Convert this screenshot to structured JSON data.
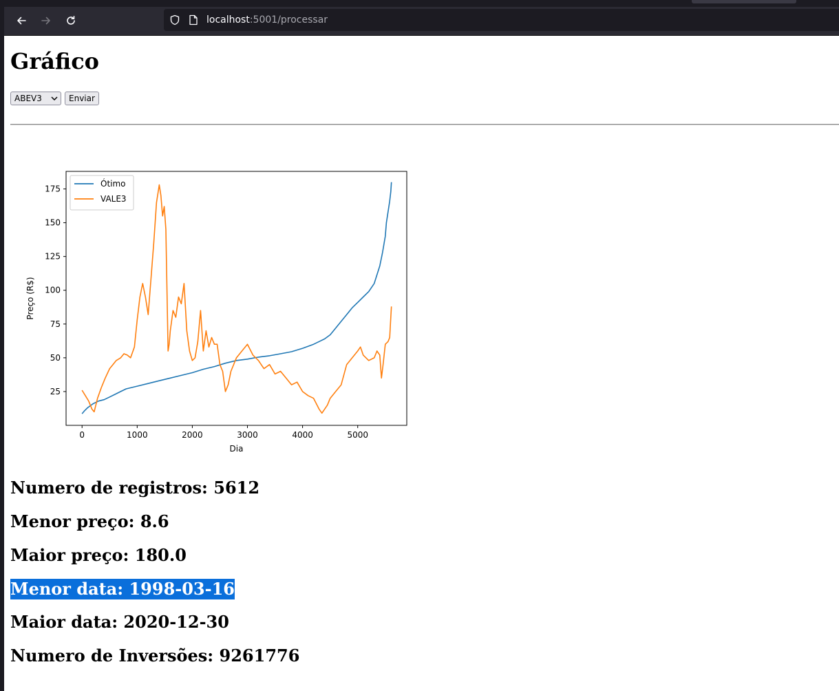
{
  "browser": {
    "url_host": "localhost",
    "url_path": ":5001/processar"
  },
  "page": {
    "title": "Gráfico",
    "select_value": "ABEV3",
    "submit_label": "Enviar"
  },
  "stats": {
    "registros": "Numero de registros: 5612",
    "menor_preco": "Menor preço: 8.6",
    "maior_preco": "Maior preço: 180.0",
    "menor_data": "Menor data: 1998-03-16",
    "maior_data": "Maior data: 2020-12-30",
    "inversoes": "Numero de Inversões: 9261776"
  },
  "colors": {
    "otimo": "#1f77b4",
    "vale3": "#ff7f0e",
    "selection": "#0a6fdb"
  },
  "chart_data": {
    "type": "line",
    "title": "",
    "xlabel": "Dia",
    "ylabel": "Preço (R$)",
    "xlim": [
      -290,
      5890
    ],
    "ylim": [
      0,
      188
    ],
    "xticks": [
      0,
      1000,
      2000,
      3000,
      4000,
      5000
    ],
    "yticks": [
      25,
      50,
      75,
      100,
      125,
      150,
      175
    ],
    "legend_position": "upper-left",
    "series": [
      {
        "name": "Ótimo",
        "color": "#1f77b4",
        "x": [
          0,
          50,
          100,
          200,
          300,
          400,
          500,
          600,
          700,
          800,
          1000,
          1200,
          1400,
          1600,
          1800,
          2000,
          2200,
          2400,
          2600,
          2800,
          3000,
          3200,
          3400,
          3600,
          3800,
          4000,
          4200,
          4300,
          4400,
          4500,
          4600,
          4700,
          4800,
          4900,
          5000,
          5100,
          5200,
          5300,
          5400,
          5450,
          5500,
          5520,
          5550,
          5580,
          5600,
          5612
        ],
        "y": [
          8.6,
          11,
          13,
          16,
          18,
          19,
          21,
          23,
          25,
          27,
          29,
          31,
          33,
          35,
          37,
          39,
          41.5,
          43.5,
          46,
          48,
          49,
          50.5,
          51.5,
          53,
          54.5,
          57,
          60,
          62,
          64,
          67,
          72,
          77,
          82,
          87,
          91,
          95,
          99,
          105,
          118,
          128,
          140,
          150,
          158,
          166,
          173,
          180
        ]
      },
      {
        "name": "VALE3",
        "color": "#ff7f0e",
        "x": [
          0,
          60,
          120,
          180,
          220,
          280,
          350,
          420,
          500,
          560,
          620,
          700,
          760,
          820,
          880,
          950,
          1000,
          1050,
          1100,
          1150,
          1200,
          1250,
          1300,
          1350,
          1400,
          1430,
          1460,
          1490,
          1520,
          1540,
          1560,
          1580,
          1600,
          1650,
          1700,
          1750,
          1800,
          1850,
          1900,
          1950,
          2000,
          2050,
          2100,
          2150,
          2200,
          2250,
          2300,
          2350,
          2400,
          2450,
          2500,
          2550,
          2600,
          2650,
          2700,
          2800,
          2900,
          3000,
          3100,
          3200,
          3300,
          3400,
          3500,
          3600,
          3700,
          3800,
          3900,
          4000,
          4100,
          4200,
          4300,
          4350,
          4400,
          4450,
          4500,
          4600,
          4700,
          4800,
          4900,
          5000,
          5050,
          5100,
          5200,
          5300,
          5350,
          5400,
          5430,
          5460,
          5500,
          5550,
          5580,
          5600,
          5612
        ],
        "y": [
          26,
          22,
          18,
          12,
          10,
          20,
          28,
          35,
          42,
          45,
          48,
          50,
          53,
          52,
          50,
          58,
          78,
          95,
          105,
          95,
          82,
          108,
          135,
          165,
          178,
          170,
          155,
          162,
          145,
          100,
          55,
          60,
          70,
          85,
          80,
          95,
          90,
          105,
          70,
          55,
          48,
          50,
          62,
          85,
          55,
          70,
          58,
          65,
          60,
          60,
          45,
          40,
          25,
          30,
          40,
          50,
          55,
          60,
          52,
          48,
          42,
          45,
          38,
          40,
          35,
          30,
          32,
          25,
          22,
          20,
          12,
          9,
          12,
          15,
          20,
          25,
          30,
          45,
          50,
          55,
          58,
          52,
          48,
          50,
          55,
          52,
          35,
          45,
          60,
          62,
          65,
          80,
          88
        ]
      }
    ]
  }
}
